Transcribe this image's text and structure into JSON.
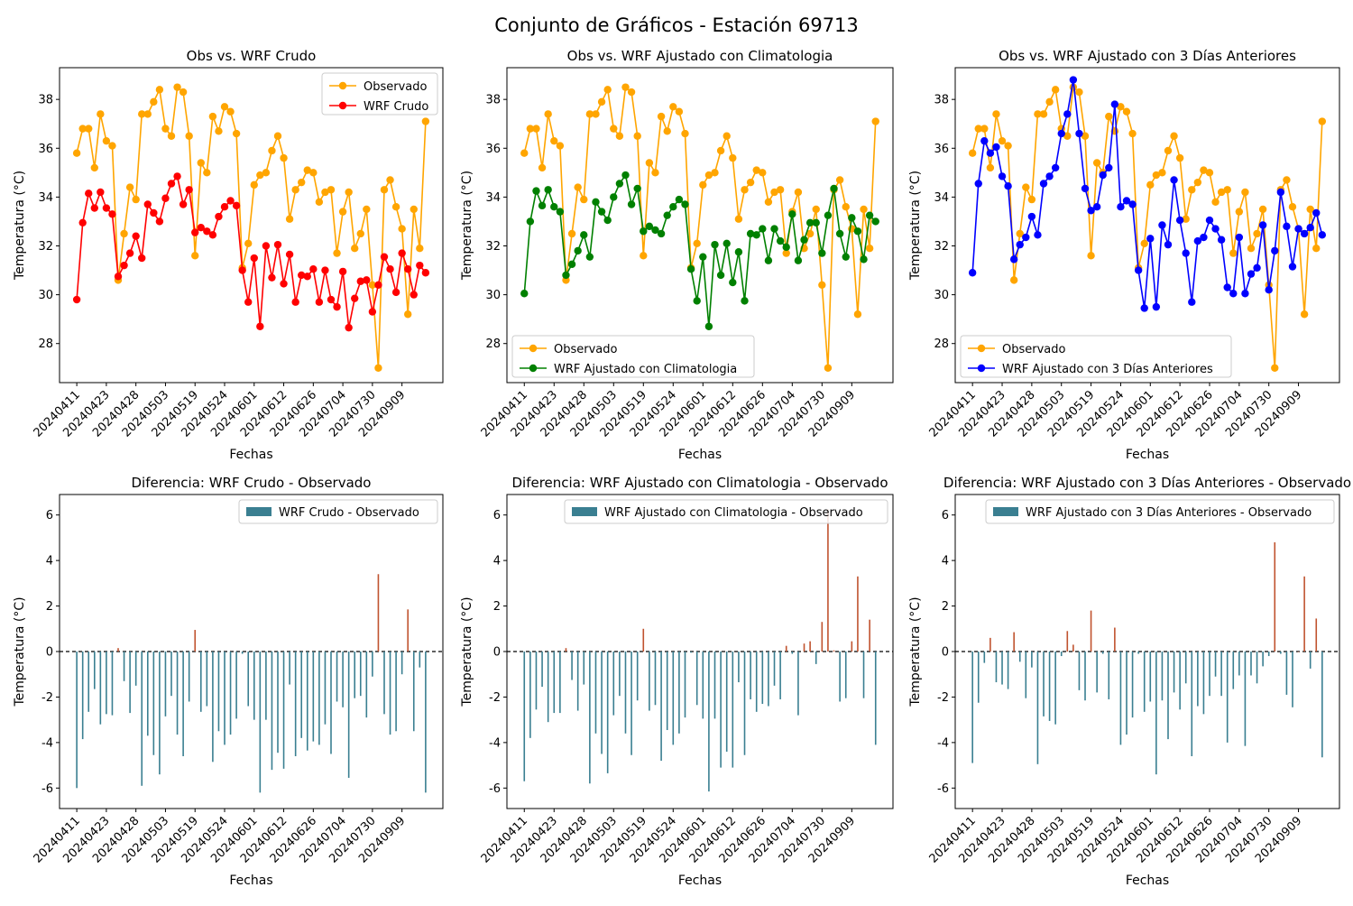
{
  "figure": {
    "suptitle": "Conjunto de Gráficos - Estación 69713"
  },
  "colors": {
    "observed": "#FFA500",
    "wrf_crudo": "#FF0000",
    "wrf_clim": "#008000",
    "wrf_3dias": "#0000FF",
    "diff_negative": "#3A7F91",
    "diff_positive": "#C0532F"
  },
  "chart_data": [
    {
      "type": "line",
      "title": "Obs vs. WRF Crudo",
      "xlabel": "Fechas",
      "ylabel": "Temperatura (°C)",
      "ylim": [
        26.4,
        39.3
      ],
      "yticks": [
        28,
        30,
        32,
        34,
        36,
        38
      ],
      "x_tick_labels": [
        "20240411",
        "20240423",
        "20240428",
        "20240503",
        "20240519",
        "20240524",
        "20240601",
        "20240612",
        "20240626",
        "20240704",
        "20240730",
        "20240909"
      ],
      "legend_position": "upper right",
      "series": [
        {
          "name": "Observado",
          "color": "#FFA500",
          "values": [
            35.8,
            36.8,
            36.8,
            35.2,
            37.4,
            36.3,
            36.1,
            30.6,
            32.5,
            34.4,
            33.9,
            37.4,
            37.4,
            37.9,
            38.4,
            36.8,
            36.5,
            38.5,
            38.3,
            36.5,
            31.6,
            35.4,
            35.0,
            37.3,
            36.7,
            37.7,
            37.5,
            36.6,
            31.1,
            32.1,
            34.5,
            34.9,
            35.0,
            35.9,
            36.5,
            35.6,
            33.1,
            34.3,
            34.6,
            35.1,
            35.0,
            33.8,
            34.2,
            34.3,
            31.7,
            33.4,
            34.2,
            31.9,
            32.5,
            33.5,
            30.4,
            27.0,
            34.3,
            34.7,
            33.6,
            32.7,
            29.2,
            33.5,
            31.9,
            37.1
          ]
        },
        {
          "name": "WRF Crudo",
          "color": "#FF0000",
          "values": [
            29.8,
            32.95,
            34.15,
            33.55,
            34.2,
            33.55,
            33.3,
            30.75,
            31.2,
            31.7,
            32.4,
            31.5,
            33.7,
            33.35,
            33.0,
            33.95,
            34.55,
            34.85,
            33.7,
            34.3,
            32.55,
            32.75,
            32.6,
            32.45,
            33.2,
            33.6,
            33.85,
            33.65,
            31.0,
            29.7,
            31.5,
            28.7,
            32.0,
            30.7,
            32.05,
            30.45,
            31.65,
            29.7,
            30.8,
            30.75,
            31.05,
            29.7,
            31.0,
            29.8,
            29.5,
            30.95,
            28.65,
            29.85,
            30.55,
            30.6,
            29.3,
            30.4,
            31.55,
            31.05,
            30.1,
            31.7,
            31.05,
            30.0,
            31.2,
            30.9
          ]
        }
      ]
    },
    {
      "type": "line",
      "title": "Obs vs. WRF Ajustado con Climatologia",
      "xlabel": "Fechas",
      "ylabel": "Temperatura (°C)",
      "ylim": [
        26.4,
        39.3
      ],
      "yticks": [
        28,
        30,
        32,
        34,
        36,
        38
      ],
      "x_tick_labels": [
        "20240411",
        "20240423",
        "20240428",
        "20240503",
        "20240519",
        "20240524",
        "20240601",
        "20240612",
        "20240626",
        "20240704",
        "20240730",
        "20240909"
      ],
      "legend_position": "lower left",
      "series": [
        {
          "name": "Observado",
          "color": "#FFA500",
          "values": [
            35.8,
            36.8,
            36.8,
            35.2,
            37.4,
            36.3,
            36.1,
            30.6,
            32.5,
            34.4,
            33.9,
            37.4,
            37.4,
            37.9,
            38.4,
            36.8,
            36.5,
            38.5,
            38.3,
            36.5,
            31.6,
            35.4,
            35.0,
            37.3,
            36.7,
            37.7,
            37.5,
            36.6,
            31.1,
            32.1,
            34.5,
            34.9,
            35.0,
            35.9,
            36.5,
            35.6,
            33.1,
            34.3,
            34.6,
            35.1,
            35.0,
            33.8,
            34.2,
            34.3,
            31.7,
            33.4,
            34.2,
            31.9,
            32.5,
            33.5,
            30.4,
            27.0,
            34.3,
            34.7,
            33.6,
            32.7,
            29.2,
            33.5,
            31.9,
            37.1
          ]
        },
        {
          "name": "WRF Ajustado con Climatologia",
          "color": "#008000",
          "values": [
            30.05,
            33.0,
            34.25,
            33.65,
            34.3,
            33.6,
            33.4,
            30.8,
            31.25,
            31.8,
            32.45,
            31.55,
            33.8,
            33.4,
            33.05,
            34.0,
            34.55,
            34.9,
            33.7,
            34.35,
            32.6,
            32.8,
            32.65,
            32.5,
            33.25,
            33.6,
            33.9,
            33.7,
            31.05,
            29.75,
            31.55,
            28.7,
            32.05,
            30.8,
            32.1,
            30.5,
            31.75,
            29.75,
            32.5,
            32.45,
            32.7,
            31.4,
            32.7,
            32.2,
            31.95,
            33.3,
            31.4,
            32.25,
            32.95,
            32.95,
            31.7,
            33.25,
            34.35,
            32.5,
            31.55,
            33.15,
            32.6,
            31.45,
            33.25,
            33.0
          ]
        }
      ]
    },
    {
      "type": "line",
      "title": "Obs vs. WRF Ajustado con 3 Días Anteriores",
      "xlabel": "Fechas",
      "ylabel": "Temperatura (°C)",
      "ylim": [
        26.4,
        39.3
      ],
      "yticks": [
        28,
        30,
        32,
        34,
        36,
        38
      ],
      "x_tick_labels": [
        "20240411",
        "20240423",
        "20240428",
        "20240503",
        "20240519",
        "20240524",
        "20240601",
        "20240612",
        "20240626",
        "20240704",
        "20240730",
        "20240909"
      ],
      "legend_position": "lower left",
      "series": [
        {
          "name": "Observado",
          "color": "#FFA500",
          "values": [
            35.8,
            36.8,
            36.8,
            35.2,
            37.4,
            36.3,
            36.1,
            30.6,
            32.5,
            34.4,
            33.9,
            37.4,
            37.4,
            37.9,
            38.4,
            36.8,
            36.5,
            38.5,
            38.3,
            36.5,
            31.6,
            35.4,
            35.0,
            37.3,
            36.7,
            37.7,
            37.5,
            36.6,
            31.1,
            32.1,
            34.5,
            34.9,
            35.0,
            35.9,
            36.5,
            35.6,
            33.1,
            34.3,
            34.6,
            35.1,
            35.0,
            33.8,
            34.2,
            34.3,
            31.7,
            33.4,
            34.2,
            31.9,
            32.5,
            33.5,
            30.4,
            27.0,
            34.3,
            34.7,
            33.6,
            32.7,
            29.2,
            33.5,
            31.9,
            37.1
          ]
        },
        {
          "name": "WRF Ajustado con 3 Días Anteriores",
          "color": "#0000FF",
          "values": [
            30.9,
            34.55,
            36.3,
            35.8,
            36.05,
            34.85,
            34.45,
            31.45,
            32.05,
            32.35,
            33.2,
            32.45,
            34.55,
            34.85,
            35.2,
            36.6,
            37.4,
            38.8,
            36.6,
            34.35,
            33.45,
            33.6,
            34.9,
            35.2,
            37.8,
            33.6,
            33.85,
            33.7,
            31.0,
            29.45,
            32.3,
            29.5,
            32.85,
            32.05,
            34.7,
            33.05,
            31.7,
            29.7,
            32.2,
            32.35,
            33.05,
            32.7,
            32.25,
            30.3,
            30.05,
            32.35,
            30.05,
            30.85,
            31.1,
            32.85,
            30.2,
            31.8,
            34.2,
            32.8,
            31.15,
            32.7,
            32.5,
            32.75,
            33.35,
            32.45
          ]
        }
      ]
    },
    {
      "type": "bar",
      "title": "Diferencia: WRF Crudo - Observado",
      "xlabel": "Fechas",
      "ylabel": "Temperatura (°C)",
      "ylim": [
        -6.9,
        6.9
      ],
      "yticks": [
        -6,
        -4,
        -2,
        0,
        2,
        4,
        6
      ],
      "x_tick_labels": [
        "20240411",
        "20240423",
        "20240428",
        "20240503",
        "20240519",
        "20240524",
        "20240601",
        "20240612",
        "20240626",
        "20240704",
        "20240730",
        "20240909"
      ],
      "legend_position": "upper right",
      "series": [
        {
          "name": "WRF Crudo - Observado",
          "values": [
            -6.0,
            -3.85,
            -2.65,
            -1.65,
            -3.2,
            -2.75,
            -2.8,
            0.15,
            -1.3,
            -2.7,
            -1.5,
            -5.9,
            -3.7,
            -4.55,
            -5.4,
            -2.85,
            -1.95,
            -3.65,
            -4.6,
            -2.2,
            0.95,
            -2.65,
            -2.4,
            -4.85,
            -3.5,
            -4.1,
            -3.65,
            -2.95,
            -0.1,
            -2.4,
            -3.0,
            -6.2,
            -3.0,
            -5.2,
            -4.45,
            -5.15,
            -1.45,
            -4.6,
            -3.8,
            -4.35,
            -3.95,
            -4.1,
            -3.2,
            -4.5,
            -2.2,
            -2.45,
            -5.55,
            -2.05,
            -1.95,
            -2.9,
            -1.1,
            3.4,
            -2.75,
            -3.65,
            -3.5,
            -1.0,
            1.85,
            -3.5,
            -0.7,
            -6.2
          ]
        }
      ]
    },
    {
      "type": "bar",
      "title": "Diferencia: WRF Ajustado con Climatologia - Observado",
      "xlabel": "Fechas",
      "ylabel": "Temperatura (°C)",
      "ylim": [
        -6.9,
        6.9
      ],
      "yticks": [
        -6,
        -4,
        -2,
        0,
        2,
        4,
        6
      ],
      "x_tick_labels": [
        "20240411",
        "20240423",
        "20240428",
        "20240503",
        "20240519",
        "20240524",
        "20240601",
        "20240612",
        "20240626",
        "20240704",
        "20240730",
        "20240909"
      ],
      "legend_position": "upper right",
      "series": [
        {
          "name": "WRF Ajustado con Climatologia - Observado",
          "values": [
            -5.7,
            -3.8,
            -2.55,
            -1.55,
            -3.1,
            -2.7,
            -2.7,
            0.15,
            -1.25,
            -2.6,
            -1.45,
            -5.8,
            -3.6,
            -4.5,
            -5.35,
            -2.8,
            -1.95,
            -3.6,
            -4.55,
            -2.15,
            1.0,
            -2.6,
            -2.35,
            -4.8,
            -3.45,
            -4.1,
            -3.6,
            -2.9,
            -0.05,
            -2.35,
            -2.95,
            -6.15,
            -2.95,
            -5.1,
            -4.4,
            -5.1,
            -1.35,
            -4.55,
            -2.1,
            -2.65,
            -2.3,
            -2.4,
            -1.5,
            -2.1,
            0.25,
            -0.1,
            -2.8,
            0.35,
            0.45,
            -0.55,
            1.3,
            6.25,
            0.05,
            -2.2,
            -2.05,
            0.45,
            3.3,
            -2.05,
            1.4,
            -4.1
          ]
        }
      ]
    },
    {
      "type": "bar",
      "title": "Diferencia: WRF Ajustado con 3 Días Anteriores - Observado",
      "xlabel": "Fechas",
      "ylabel": "Temperatura (°C)",
      "ylim": [
        -6.9,
        6.9
      ],
      "yticks": [
        -6,
        -4,
        -2,
        0,
        2,
        4,
        6
      ],
      "x_tick_labels": [
        "20240411",
        "20240423",
        "20240428",
        "20240503",
        "20240519",
        "20240524",
        "20240601",
        "20240612",
        "20240626",
        "20240704",
        "20240730",
        "20240909"
      ],
      "legend_position": "upper right",
      "series": [
        {
          "name": "WRF Ajustado con 3 Días Anteriores - Observado",
          "values": [
            -4.9,
            -2.25,
            -0.5,
            0.6,
            -1.35,
            -1.45,
            -1.65,
            0.85,
            -0.45,
            -2.05,
            -0.7,
            -4.95,
            -2.85,
            -3.05,
            -3.2,
            -0.2,
            0.9,
            0.3,
            -1.7,
            -2.15,
            1.8,
            -1.8,
            -0.1,
            -2.1,
            1.05,
            -4.1,
            -3.65,
            -2.9,
            -0.1,
            -2.65,
            -2.2,
            -5.4,
            -2.15,
            -3.85,
            -1.8,
            -2.55,
            -1.4,
            -4.6,
            -2.4,
            -2.75,
            -1.95,
            -1.1,
            -1.95,
            -4.0,
            -1.65,
            -1.05,
            -4.15,
            -1.05,
            -1.4,
            -0.65,
            -0.2,
            4.8,
            -0.1,
            -1.9,
            -2.45,
            0.0,
            3.3,
            -0.75,
            1.45,
            -4.65
          ]
        }
      ]
    }
  ]
}
